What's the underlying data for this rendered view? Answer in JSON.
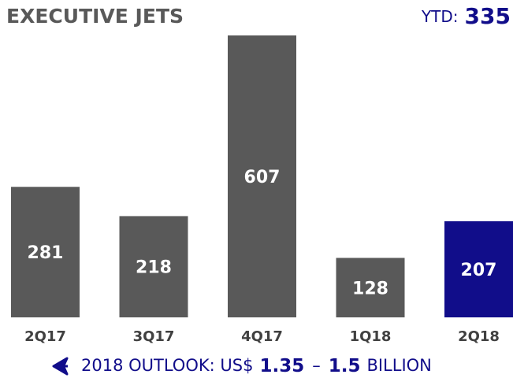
{
  "chart_data": {
    "type": "bar",
    "title": "EXECUTIVE JETS",
    "ytd_label": "YTD:",
    "ytd_value": 335,
    "categories": [
      "2Q17",
      "3Q17",
      "4Q17",
      "1Q18",
      "2Q18"
    ],
    "values": [
      281,
      218,
      607,
      128,
      207
    ],
    "colors": [
      "#595959",
      "#595959",
      "#595959",
      "#595959",
      "#110d8a"
    ],
    "outlook": {
      "prefix": "2018 OUTLOOK: US$",
      "low": "1.35",
      "separator": "–",
      "high": "1.5",
      "suffix": "BILLION"
    }
  }
}
